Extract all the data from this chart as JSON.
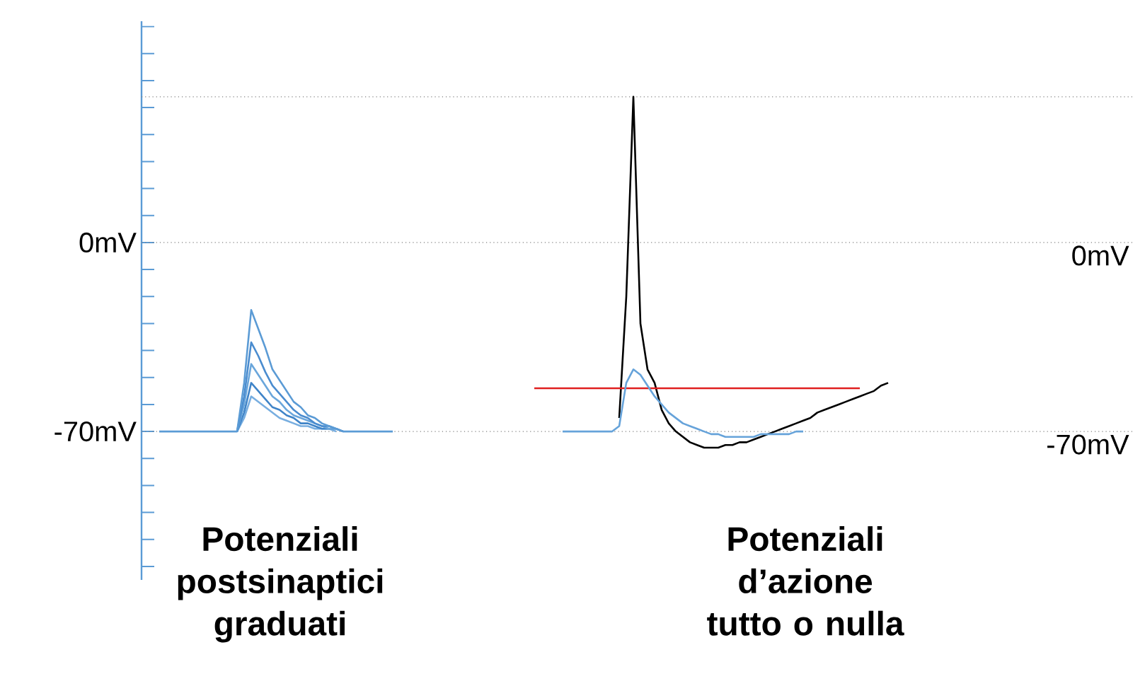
{
  "chart_data": {
    "type": "line",
    "ylim": [
      -125,
      82
    ],
    "categories": [
      null,
      null,
      null,
      null,
      null,
      null,
      null,
      null,
      null,
      null,
      null,
      null,
      null,
      null,
      null,
      null,
      null,
      null,
      null,
      null,
      null,
      null,
      null,
      null,
      null,
      null,
      null,
      null,
      null,
      null,
      null,
      null,
      null,
      null,
      null,
      null,
      null,
      null,
      null,
      null,
      null,
      null,
      null,
      null,
      null,
      null,
      null,
      null,
      null,
      null,
      null,
      null,
      null,
      null,
      null,
      null,
      null,
      null,
      null,
      null,
      null,
      null,
      null,
      null,
      null,
      null,
      null,
      null,
      null,
      null,
      null,
      null,
      null,
      null,
      null,
      null,
      null,
      null,
      null,
      null,
      null,
      null,
      null,
      null,
      null,
      null,
      null,
      null,
      null,
      null,
      null,
      null,
      null,
      null,
      null,
      null,
      null,
      null,
      null,
      null,
      null,
      null,
      null,
      null,
      null,
      null,
      null,
      null,
      null,
      null,
      null,
      null,
      null,
      null,
      null,
      null,
      null,
      null,
      null,
      null,
      null,
      null,
      null,
      null,
      null,
      null,
      null,
      null,
      null,
      null,
      null,
      null,
      null,
      null,
      null,
      null,
      null,
      null,
      null,
      null
    ],
    "yticks": [
      {
        "value": -120,
        "label": null
      },
      {
        "value": -110,
        "label": null
      },
      {
        "value": -100,
        "label": null
      },
      {
        "value": -90,
        "label": null
      },
      {
        "value": -80,
        "label": null
      },
      {
        "value": -70,
        "label": "-70mV"
      },
      {
        "value": -60,
        "label": null
      },
      {
        "value": -50,
        "label": null
      },
      {
        "value": -40,
        "label": null
      },
      {
        "value": -30,
        "label": null
      },
      {
        "value": -20,
        "label": null
      },
      {
        "value": -10,
        "label": null
      },
      {
        "value": 0,
        "label": "0mV"
      },
      {
        "value": 10,
        "label": null
      },
      {
        "value": 20,
        "label": null
      },
      {
        "value": 30,
        "label": null
      },
      {
        "value": 40,
        "label": null
      },
      {
        "value": 50,
        "label": null
      },
      {
        "value": 60,
        "label": null
      },
      {
        "value": 70,
        "label": null
      },
      {
        "value": 80,
        "label": null
      }
    ],
    "tick_labels": "y",
    "marker": "none",
    "line_style": "solid",
    "series": [
      {
        "color": "#5b9bd5",
        "values": [
          null,
          null,
          -70,
          -70,
          -70,
          -70,
          -70,
          -70,
          -70,
          -70,
          -70,
          -70,
          -70,
          -70,
          -52,
          -25,
          -32,
          -39,
          -47,
          -51,
          -55,
          -59,
          -61,
          -64,
          -65,
          -67,
          -68,
          -69,
          -70,
          -70,
          -70,
          -70,
          -70,
          -70,
          -70,
          -70,
          null,
          null,
          null,
          null,
          null,
          null,
          null,
          null,
          null,
          null,
          null,
          null,
          null,
          null,
          null,
          null,
          null,
          null,
          null,
          null,
          null,
          null,
          null,
          null,
          null,
          null,
          null,
          null,
          null,
          null,
          null,
          null,
          null,
          null,
          null,
          null,
          null,
          null,
          null,
          null,
          null,
          null,
          null,
          null,
          null,
          null,
          null,
          null,
          null,
          null,
          null,
          null,
          null,
          null,
          null,
          null,
          null,
          null,
          null,
          null,
          null,
          null,
          null,
          null,
          null,
          null,
          null,
          null,
          null,
          null,
          null,
          null,
          null,
          null,
          null,
          null,
          null,
          null,
          null,
          null,
          null,
          null,
          null,
          null,
          null,
          null,
          null,
          null,
          null,
          null,
          null,
          null,
          null,
          null,
          null,
          null,
          null,
          null,
          null,
          null,
          null,
          null,
          null,
          null
        ]
      },
      {
        "color": "#4a8ccf",
        "values": [
          null,
          null,
          null,
          null,
          null,
          null,
          null,
          null,
          null,
          null,
          null,
          null,
          null,
          -70,
          -57,
          -37,
          -42,
          -48,
          -53,
          -56,
          -59,
          -62,
          -64,
          -65,
          -67,
          -68,
          -68,
          -69,
          -70,
          null,
          null,
          null,
          null,
          null,
          null,
          null,
          null,
          null,
          null,
          null,
          null,
          null,
          null,
          null,
          null,
          null,
          null,
          null,
          null,
          null,
          null,
          null,
          null,
          null,
          null,
          null,
          null,
          null,
          null,
          null,
          null,
          null,
          null,
          null,
          null,
          null,
          null,
          null,
          null,
          null,
          null,
          null,
          null,
          null,
          null,
          null,
          null,
          null,
          null,
          null,
          null,
          null,
          null,
          null,
          null,
          null,
          null,
          null,
          null,
          null,
          null,
          null,
          null,
          null,
          null,
          null,
          null,
          null,
          null,
          null,
          null,
          null,
          null,
          null,
          null,
          null,
          null,
          null,
          null,
          null,
          null,
          null,
          null,
          null,
          null,
          null,
          null,
          null,
          null,
          null,
          null,
          null,
          null,
          null,
          null,
          null,
          null,
          null,
          null,
          null,
          null,
          null,
          null,
          null,
          null,
          null,
          null,
          null,
          null,
          null
        ]
      },
      {
        "color": "#6aa6db",
        "values": [
          null,
          null,
          null,
          null,
          null,
          null,
          null,
          null,
          null,
          null,
          null,
          null,
          null,
          -70,
          -60,
          -45,
          -49,
          -53,
          -57,
          -59,
          -62,
          -64,
          -65,
          -66,
          -67,
          -68,
          -69,
          -69,
          -70,
          null,
          null,
          null,
          null,
          null,
          null,
          null,
          null,
          null,
          null,
          null,
          null,
          null,
          null,
          null,
          null,
          null,
          null,
          null,
          null,
          null,
          null,
          null,
          null,
          null,
          null,
          null,
          null,
          null,
          null,
          null,
          null,
          null,
          null,
          null,
          null,
          null,
          null,
          null,
          null,
          null,
          null,
          null,
          null,
          null,
          null,
          null,
          null,
          null,
          null,
          null,
          null,
          null,
          null,
          null,
          null,
          null,
          null,
          null,
          null,
          null,
          null,
          null,
          null,
          null,
          null,
          null,
          null,
          null,
          null,
          null,
          null,
          null,
          null,
          null,
          null,
          null,
          null,
          null,
          null,
          null,
          null,
          null,
          null,
          null,
          null,
          null,
          null,
          null,
          null,
          null,
          null,
          null,
          null,
          null,
          null,
          null,
          null,
          null,
          null,
          null,
          null,
          null,
          null,
          null,
          null,
          null,
          null,
          null,
          null,
          null
        ]
      },
      {
        "color": "#3f84c8",
        "values": [
          null,
          null,
          null,
          null,
          null,
          null,
          null,
          null,
          null,
          null,
          null,
          null,
          null,
          -70,
          -63,
          -52,
          -55,
          -58,
          -61,
          -62,
          -64,
          -65,
          -67,
          -67,
          -68,
          -69,
          -69,
          -69,
          -70,
          null,
          null,
          null,
          null,
          null,
          null,
          null,
          null,
          null,
          null,
          null,
          null,
          null,
          null,
          null,
          null,
          null,
          null,
          null,
          null,
          null,
          null,
          null,
          null,
          null,
          null,
          null,
          null,
          null,
          null,
          null,
          null,
          null,
          null,
          null,
          null,
          null,
          null,
          null,
          null,
          null,
          null,
          null,
          null,
          null,
          null,
          null,
          null,
          null,
          null,
          null,
          null,
          null,
          null,
          null,
          null,
          null,
          null,
          null,
          null,
          null,
          null,
          null,
          null,
          null,
          null,
          null,
          null,
          null,
          null,
          null,
          null,
          null,
          null,
          null,
          null,
          null,
          null,
          null,
          null,
          null,
          null,
          null,
          null,
          null,
          null,
          null,
          null,
          null,
          null,
          null,
          null,
          null,
          null,
          null,
          null,
          null,
          null,
          null,
          null,
          null,
          null,
          null,
          null,
          null,
          null,
          null,
          null,
          null,
          null,
          null
        ]
      },
      {
        "color": "#78aee0",
        "values": [
          null,
          null,
          null,
          null,
          null,
          null,
          null,
          null,
          null,
          null,
          null,
          null,
          null,
          -70,
          -65,
          -57,
          -59,
          -61,
          -63,
          -65,
          -66,
          -67,
          -68,
          -68,
          -69,
          -69,
          -69,
          -70,
          null,
          null,
          null,
          null,
          null,
          null,
          null,
          null,
          null,
          null,
          null,
          null,
          null,
          null,
          null,
          null,
          null,
          null,
          null,
          null,
          null,
          null,
          null,
          null,
          null,
          null,
          null,
          null,
          null,
          null,
          null,
          null,
          null,
          null,
          null,
          null,
          null,
          null,
          null,
          null,
          null,
          null,
          null,
          null,
          null,
          null,
          null,
          null,
          null,
          null,
          null,
          null,
          null,
          null,
          null,
          null,
          null,
          null,
          null,
          null,
          null,
          null,
          null,
          null,
          null,
          null,
          null,
          null,
          null,
          null,
          null,
          null,
          null,
          null,
          null,
          null,
          null,
          null,
          null,
          null,
          null,
          null,
          null,
          null,
          null,
          null,
          null,
          null,
          null,
          null,
          null,
          null,
          null,
          null,
          null,
          null,
          null,
          null,
          null,
          null,
          null,
          null,
          null,
          null,
          null,
          null,
          null,
          null,
          null,
          null,
          null,
          null
        ]
      },
      {
        "color": "#66a3da",
        "values": [
          null,
          null,
          null,
          null,
          null,
          null,
          null,
          null,
          null,
          null,
          null,
          null,
          null,
          null,
          null,
          null,
          null,
          null,
          null,
          null,
          null,
          null,
          null,
          null,
          null,
          null,
          null,
          null,
          null,
          null,
          null,
          null,
          null,
          null,
          null,
          null,
          null,
          null,
          null,
          null,
          null,
          null,
          null,
          null,
          null,
          null,
          null,
          null,
          null,
          null,
          null,
          null,
          null,
          null,
          null,
          null,
          null,
          null,
          null,
          -70,
          -70,
          -70,
          -70,
          -70,
          -70,
          -70,
          -70,
          -68,
          -52,
          -47,
          -49,
          -53,
          -57,
          -60,
          -63,
          -65,
          -67,
          -68,
          -69,
          -70,
          -71,
          -71,
          -72,
          -72,
          -72,
          -72,
          -72,
          -71,
          -71,
          -71,
          -71,
          -71,
          -70,
          -70,
          null,
          null,
          null,
          null,
          null,
          null,
          null,
          null,
          null,
          null,
          null,
          null,
          null,
          null,
          null,
          null,
          null,
          null,
          null,
          null,
          null,
          null,
          null,
          null,
          null,
          null,
          null,
          null,
          null,
          null,
          null,
          null,
          null,
          null,
          null,
          null,
          null,
          null,
          null,
          null,
          null,
          null,
          null,
          null,
          null,
          null
        ]
      },
      {
        "color": "#e02020",
        "values": [
          null,
          null,
          null,
          null,
          null,
          null,
          null,
          null,
          null,
          null,
          null,
          null,
          null,
          null,
          null,
          null,
          null,
          null,
          null,
          null,
          null,
          null,
          null,
          null,
          null,
          null,
          null,
          null,
          null,
          null,
          null,
          null,
          null,
          null,
          null,
          null,
          null,
          null,
          null,
          null,
          null,
          null,
          null,
          null,
          null,
          null,
          null,
          null,
          null,
          null,
          null,
          null,
          null,
          null,
          null,
          -54,
          -54,
          -54,
          -54,
          -54,
          -54,
          -54,
          -54,
          -54,
          -54,
          -54,
          -54,
          -54,
          -54,
          -54,
          -54,
          -54,
          -54,
          -54,
          -54,
          -54,
          -54,
          -54,
          -54,
          -54,
          -54,
          -54,
          -54,
          -54,
          -54,
          -54,
          -54,
          -54,
          -54,
          -54,
          -54,
          -54,
          -54,
          -54,
          -54,
          -54,
          -54,
          -54,
          -54,
          -54,
          -54,
          -54,
          null,
          null,
          null,
          null,
          null,
          null,
          null,
          null,
          null,
          null,
          null,
          null,
          null,
          null,
          null,
          null,
          null,
          null,
          null,
          null,
          null,
          null,
          null,
          null,
          null,
          null,
          null,
          null,
          null,
          null,
          null,
          null,
          null,
          null,
          null,
          null,
          null,
          null
        ]
      },
      {
        "color": "#000000",
        "values": [
          null,
          null,
          null,
          null,
          null,
          null,
          null,
          null,
          null,
          null,
          null,
          null,
          null,
          null,
          null,
          null,
          null,
          null,
          null,
          null,
          null,
          null,
          null,
          null,
          null,
          null,
          null,
          null,
          null,
          null,
          null,
          null,
          null,
          null,
          null,
          null,
          null,
          null,
          null,
          null,
          null,
          null,
          null,
          null,
          null,
          null,
          null,
          null,
          null,
          null,
          null,
          null,
          null,
          null,
          null,
          null,
          null,
          null,
          null,
          null,
          null,
          null,
          null,
          null,
          null,
          null,
          null,
          -65,
          -20,
          54,
          -30,
          -47,
          -52,
          -62,
          -67,
          -70,
          -72,
          -74,
          -75,
          -76,
          -76,
          -76,
          -75,
          -75,
          -74,
          -74,
          -73,
          -72,
          -71,
          -70,
          -69,
          -68,
          -67,
          -66,
          -65,
          -63,
          -62,
          -61,
          -60,
          -59,
          -58,
          -57,
          -56,
          -55,
          -53,
          -52,
          null,
          null,
          null,
          null,
          null,
          null,
          null,
          null,
          null,
          null,
          null,
          null,
          null,
          null,
          null,
          null,
          null,
          null,
          null,
          null,
          null,
          null,
          null,
          null,
          null,
          null,
          null,
          null,
          null,
          null,
          null,
          null,
          null,
          null
        ]
      }
    ],
    "ref_lines": [
      {
        "axis": "y",
        "value": 54,
        "color": "#808080",
        "line_style": "dotted"
      },
      {
        "axis": "y",
        "value": 0,
        "label": "0mV",
        "color": "#808080",
        "line_style": "dotted"
      },
      {
        "axis": "y",
        "value": -70,
        "label": "-70mV",
        "color": "#808080",
        "line_style": "dotted"
      }
    ],
    "annotations": [
      "Potenziali postsinaptici graduati",
      "Potenziali d’azione tutto o nulla"
    ]
  }
}
